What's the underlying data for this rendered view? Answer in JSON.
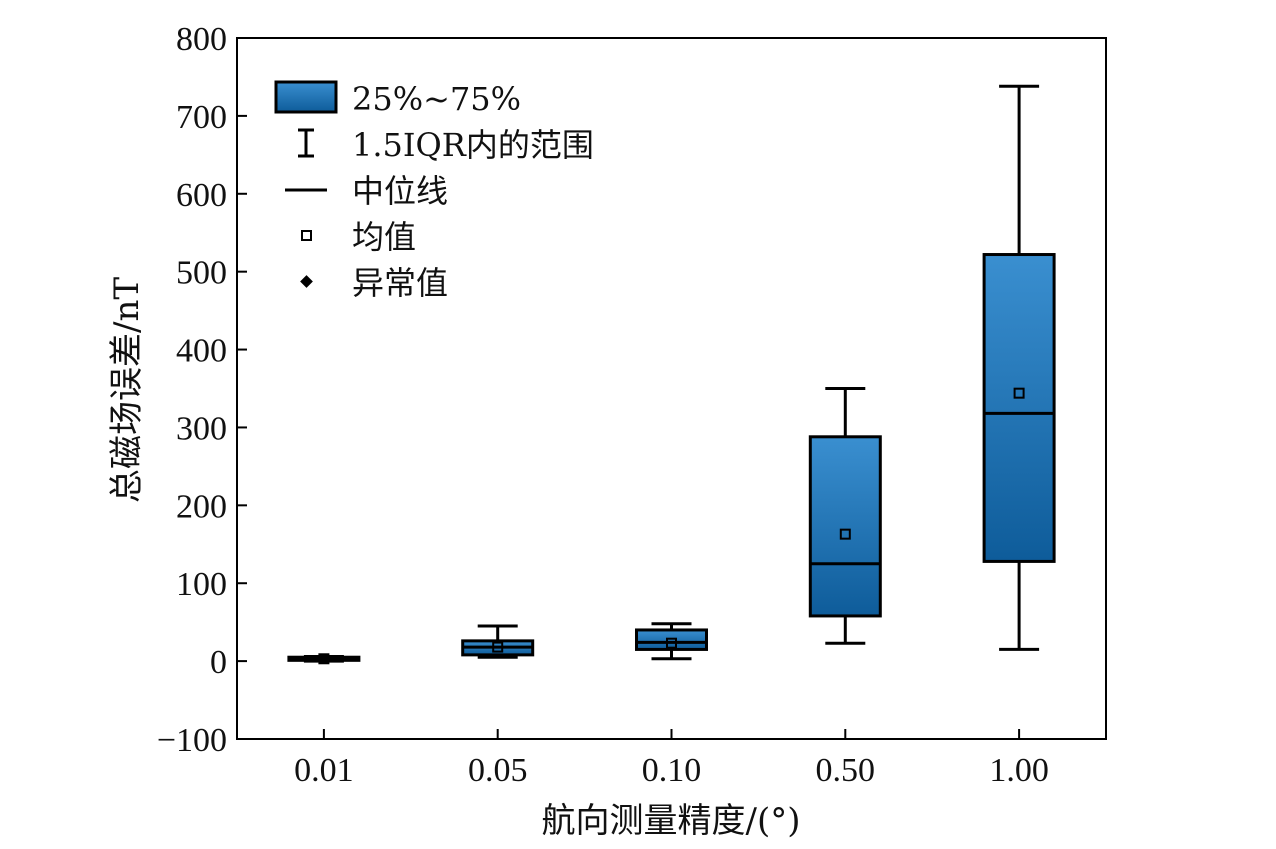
{
  "chart_data": {
    "type": "box",
    "xlabel": "航向测量精度/(°)",
    "ylabel": "总磁场误差/nT",
    "ylim": [
      -100,
      800
    ],
    "yticks": [
      -100,
      0,
      100,
      200,
      300,
      400,
      500,
      600,
      700,
      800
    ],
    "categories": [
      "0.01",
      "0.05",
      "0.10",
      "0.50",
      "1.00"
    ],
    "boxes": [
      {
        "category": "0.01",
        "whisker_low": 0,
        "q1": 1,
        "median": 3,
        "q3": 5,
        "whisker_high": 6,
        "mean": 3
      },
      {
        "category": "0.05",
        "whisker_low": 5,
        "q1": 8,
        "median": 18,
        "q3": 26,
        "whisker_high": 45,
        "mean": 18
      },
      {
        "category": "0.10",
        "whisker_low": 3,
        "q1": 15,
        "median": 24,
        "q3": 40,
        "whisker_high": 48,
        "mean": 23
      },
      {
        "category": "0.50",
        "whisker_low": 23,
        "q1": 58,
        "median": 125,
        "q3": 288,
        "whisker_high": 350,
        "mean": 163
      },
      {
        "category": "1.00",
        "whisker_low": 15,
        "q1": 128,
        "median": 318,
        "q3": 522,
        "whisker_high": 738,
        "mean": 344
      }
    ],
    "legend": {
      "placement": "top-left",
      "entries": [
        "25%~75%",
        "1.5IQR内的范围",
        "中位线",
        "均值",
        "异常值"
      ]
    },
    "grid": false,
    "colors": {
      "box_fill_top": "#3a8fd0",
      "box_fill_bottom": "#0e5c9a",
      "stroke": "#000000"
    }
  }
}
